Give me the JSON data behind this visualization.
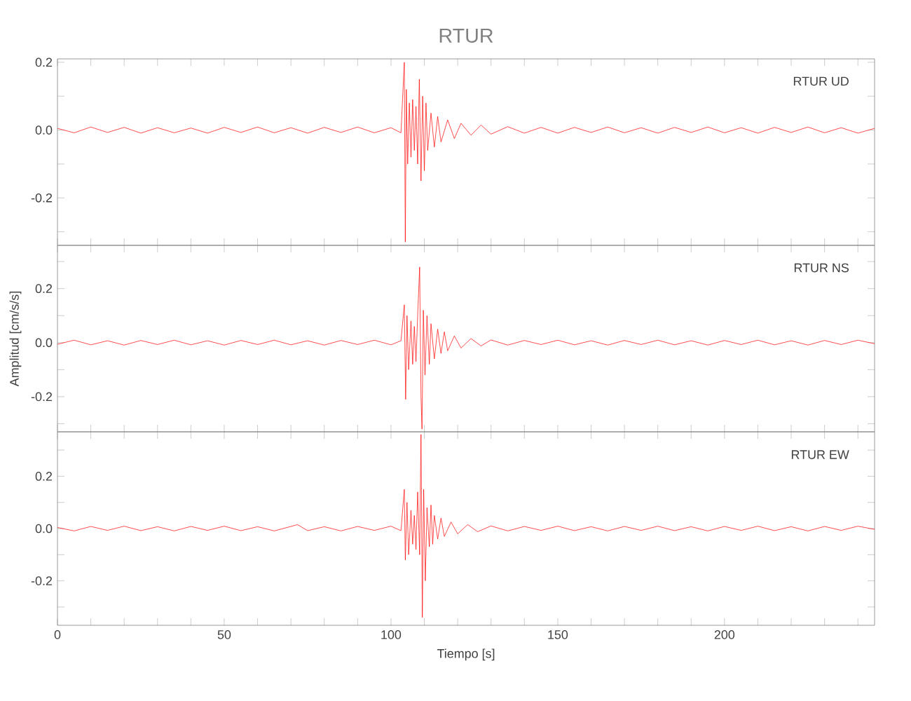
{
  "chart_data": [
    {
      "type": "line",
      "title": "RTUR",
      "xlim": [
        0,
        245
      ],
      "ylim": [
        -0.34,
        0.21
      ],
      "tick_labels": "y",
      "xticks": [
        0,
        {
          "value": 10,
          "label": null
        },
        {
          "value": 20,
          "label": null
        },
        {
          "value": 30,
          "label": null
        },
        {
          "value": 40,
          "label": null
        },
        50,
        {
          "value": 60,
          "label": null
        },
        {
          "value": 70,
          "label": null
        },
        {
          "value": 80,
          "label": null
        },
        {
          "value": 90,
          "label": null
        },
        100,
        {
          "value": 110,
          "label": null
        },
        {
          "value": 120,
          "label": null
        },
        {
          "value": 130,
          "label": null
        },
        {
          "value": 140,
          "label": null
        },
        150,
        {
          "value": 160,
          "label": null
        },
        {
          "value": 170,
          "label": null
        },
        {
          "value": 180,
          "label": null
        },
        {
          "value": 190,
          "label": null
        },
        200,
        {
          "value": 210,
          "label": null
        },
        {
          "value": 220,
          "label": null
        },
        {
          "value": 230,
          "label": null
        },
        {
          "value": 240,
          "label": null
        }
      ],
      "yticks": [
        {
          "value": -0.3,
          "label": null
        },
        {
          "value": -0.2,
          "label": "-0.2"
        },
        {
          "value": -0.1,
          "label": null
        },
        {
          "value": 0.0,
          "label": "0.0"
        },
        {
          "value": 0.1,
          "label": null
        },
        {
          "value": 0.2,
          "label": "0.2"
        }
      ],
      "series": [
        {
          "name": "RTUR UD",
          "color": "#ff0000",
          "x": [
            0,
            5,
            10,
            15,
            20,
            25,
            30,
            35,
            40,
            45,
            50,
            55,
            60,
            65,
            70,
            75,
            80,
            85,
            90,
            95,
            100,
            103,
            104,
            104.3,
            104.6,
            105,
            105.5,
            106,
            106.5,
            107,
            107.5,
            108,
            108.5,
            109,
            109.5,
            110,
            110.5,
            111,
            112,
            113,
            114,
            115,
            117,
            119,
            121,
            124,
            127,
            130,
            135,
            140,
            145,
            150,
            155,
            160,
            165,
            170,
            175,
            180,
            185,
            190,
            195,
            200,
            205,
            210,
            215,
            220,
            225,
            230,
            235,
            240,
            245
          ],
          "values": [
            0.005,
            -0.008,
            0.009,
            -0.007,
            0.008,
            -0.009,
            0.007,
            -0.008,
            0.006,
            -0.009,
            0.008,
            -0.007,
            0.009,
            -0.008,
            0.007,
            -0.009,
            0.008,
            -0.007,
            0.009,
            -0.008,
            0.007,
            -0.008,
            0.2,
            -0.33,
            0.12,
            -0.1,
            0.08,
            -0.08,
            0.09,
            -0.06,
            0.07,
            -0.1,
            0.15,
            -0.15,
            0.1,
            -0.12,
            0.08,
            -0.06,
            0.05,
            -0.05,
            0.04,
            -0.035,
            0.03,
            -0.025,
            0.02,
            -0.015,
            0.015,
            -0.012,
            0.01,
            -0.009,
            0.008,
            -0.009,
            0.008,
            -0.007,
            0.009,
            -0.008,
            0.007,
            -0.009,
            0.008,
            -0.007,
            0.009,
            -0.008,
            0.007,
            -0.009,
            0.008,
            -0.007,
            0.009,
            -0.008,
            0.007,
            -0.009,
            0.005
          ]
        }
      ]
    },
    {
      "type": "line",
      "ylabel": "Amplitud [cm/s/s]",
      "xlim": [
        0,
        245
      ],
      "ylim": [
        -0.33,
        0.36
      ],
      "tick_labels": "y",
      "xticks": [
        0,
        {
          "value": 10,
          "label": null
        },
        {
          "value": 20,
          "label": null
        },
        {
          "value": 30,
          "label": null
        },
        {
          "value": 40,
          "label": null
        },
        50,
        {
          "value": 60,
          "label": null
        },
        {
          "value": 70,
          "label": null
        },
        {
          "value": 80,
          "label": null
        },
        {
          "value": 90,
          "label": null
        },
        100,
        {
          "value": 110,
          "label": null
        },
        {
          "value": 120,
          "label": null
        },
        {
          "value": 130,
          "label": null
        },
        {
          "value": 140,
          "label": null
        },
        150,
        {
          "value": 160,
          "label": null
        },
        {
          "value": 170,
          "label": null
        },
        {
          "value": 180,
          "label": null
        },
        {
          "value": 190,
          "label": null
        },
        200,
        {
          "value": 210,
          "label": null
        },
        {
          "value": 220,
          "label": null
        },
        {
          "value": 230,
          "label": null
        },
        {
          "value": 240,
          "label": null
        }
      ],
      "yticks": [
        {
          "value": -0.3,
          "label": null
        },
        {
          "value": -0.2,
          "label": "-0.2"
        },
        {
          "value": -0.1,
          "label": null
        },
        {
          "value": 0.0,
          "label": "0.0"
        },
        {
          "value": 0.1,
          "label": null
        },
        {
          "value": 0.2,
          "label": "0.2"
        },
        {
          "value": 0.3,
          "label": null
        }
      ],
      "series": [
        {
          "name": "RTUR NS",
          "color": "#ff0000",
          "x": [
            0,
            5,
            10,
            15,
            20,
            25,
            30,
            35,
            40,
            45,
            50,
            55,
            60,
            65,
            70,
            75,
            80,
            85,
            90,
            95,
            100,
            103,
            104,
            104.4,
            104.8,
            105.3,
            106,
            106.5,
            107,
            107.5,
            108,
            108.6,
            109,
            109.3,
            109.7,
            110.2,
            110.8,
            111.5,
            112,
            113,
            114,
            115,
            116,
            117,
            119,
            121,
            124,
            127,
            130,
            135,
            140,
            145,
            150,
            155,
            160,
            165,
            170,
            175,
            180,
            185,
            190,
            195,
            200,
            205,
            210,
            215,
            220,
            225,
            230,
            235,
            240,
            245
          ],
          "values": [
            -0.006,
            0.009,
            -0.008,
            0.007,
            -0.009,
            0.008,
            -0.007,
            0.009,
            -0.008,
            0.007,
            -0.009,
            0.008,
            -0.007,
            0.009,
            -0.008,
            0.007,
            -0.009,
            0.008,
            -0.007,
            0.009,
            -0.008,
            0.007,
            0.14,
            -0.21,
            0.1,
            -0.1,
            0.08,
            -0.08,
            0.06,
            -0.07,
            0.1,
            0.28,
            -0.2,
            -0.32,
            0.12,
            -0.12,
            0.1,
            -0.08,
            0.07,
            -0.06,
            0.05,
            -0.04,
            0.04,
            -0.03,
            0.025,
            -0.02,
            0.015,
            -0.012,
            0.01,
            -0.009,
            0.008,
            -0.007,
            0.009,
            -0.008,
            0.007,
            -0.009,
            0.008,
            -0.007,
            0.009,
            -0.008,
            0.007,
            -0.009,
            0.008,
            -0.007,
            0.009,
            -0.008,
            0.007,
            -0.009,
            0.008,
            -0.007,
            0.009,
            -0.004
          ]
        }
      ]
    },
    {
      "type": "line",
      "xlabel": "Tiempo [s]",
      "xlim": [
        0,
        245
      ],
      "ylim": [
        -0.37,
        0.37
      ],
      "xticks": [
        0,
        {
          "value": 10,
          "label": null
        },
        {
          "value": 20,
          "label": null
        },
        {
          "value": 30,
          "label": null
        },
        {
          "value": 40,
          "label": null
        },
        50,
        {
          "value": 60,
          "label": null
        },
        {
          "value": 70,
          "label": null
        },
        {
          "value": 80,
          "label": null
        },
        {
          "value": 90,
          "label": null
        },
        100,
        {
          "value": 110,
          "label": null
        },
        {
          "value": 120,
          "label": null
        },
        {
          "value": 130,
          "label": null
        },
        {
          "value": 140,
          "label": null
        },
        150,
        {
          "value": 160,
          "label": null
        },
        {
          "value": 170,
          "label": null
        },
        {
          "value": 180,
          "label": null
        },
        {
          "value": 190,
          "label": null
        },
        200,
        {
          "value": 210,
          "label": null
        },
        {
          "value": 220,
          "label": null
        },
        {
          "value": 230,
          "label": null
        },
        {
          "value": 240,
          "label": null
        }
      ],
      "yticks": [
        {
          "value": -0.3,
          "label": null
        },
        {
          "value": -0.2,
          "label": "-0.2"
        },
        {
          "value": -0.1,
          "label": null
        },
        {
          "value": 0.0,
          "label": "0.0"
        },
        {
          "value": 0.1,
          "label": null
        },
        {
          "value": 0.2,
          "label": "0.2"
        },
        {
          "value": 0.3,
          "label": null
        }
      ],
      "series": [
        {
          "name": "RTUR EW",
          "color": "#ff0000",
          "x": [
            0,
            5,
            10,
            15,
            20,
            25,
            30,
            35,
            40,
            45,
            50,
            55,
            60,
            65,
            70,
            72,
            75,
            80,
            85,
            90,
            95,
            100,
            103,
            104,
            104.3,
            104.8,
            105.3,
            106,
            106.5,
            107,
            107.5,
            108,
            108.6,
            109,
            109.4,
            109.8,
            110.3,
            110.8,
            111.5,
            112,
            112.5,
            113,
            114,
            115,
            116,
            118,
            120,
            123,
            126,
            130,
            135,
            140,
            145,
            150,
            155,
            160,
            165,
            170,
            175,
            180,
            185,
            190,
            195,
            200,
            205,
            210,
            215,
            220,
            225,
            230,
            235,
            240,
            245
          ],
          "values": [
            0.004,
            -0.009,
            0.008,
            -0.007,
            0.009,
            -0.008,
            0.007,
            -0.009,
            0.008,
            -0.007,
            0.009,
            -0.008,
            0.007,
            -0.009,
            0.008,
            0.015,
            -0.008,
            0.007,
            -0.009,
            0.008,
            -0.007,
            0.009,
            -0.008,
            0.15,
            -0.12,
            0.1,
            -0.1,
            0.07,
            -0.06,
            0.05,
            -0.08,
            0.14,
            -0.1,
            0.36,
            -0.34,
            0.15,
            -0.2,
            0.08,
            -0.07,
            0.09,
            -0.06,
            0.05,
            -0.04,
            0.04,
            -0.03,
            0.025,
            -0.02,
            0.015,
            -0.012,
            0.01,
            -0.009,
            0.008,
            -0.007,
            0.009,
            -0.008,
            0.007,
            -0.009,
            0.008,
            -0.007,
            0.009,
            -0.008,
            0.007,
            -0.009,
            0.008,
            -0.007,
            0.009,
            -0.008,
            0.007,
            -0.009,
            0.008,
            -0.007,
            0.009,
            -0.003
          ]
        }
      ]
    }
  ]
}
